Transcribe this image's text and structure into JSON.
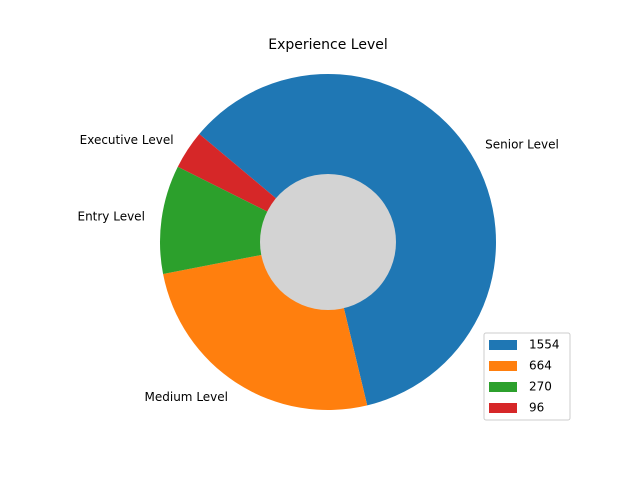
{
  "chart_data": {
    "type": "pie",
    "title": "Experience Level",
    "categories": [
      "Senior Level",
      "Medium Level",
      "Entry Level",
      "Executive Level"
    ],
    "values": [
      1554,
      664,
      270,
      96
    ],
    "colors": [
      "#1f77b4",
      "#ff7f0e",
      "#2ca02c",
      "#d62728"
    ],
    "center_hole_color": "#d3d3d3",
    "start_angle_deg": 140,
    "direction": "clockwise",
    "legend": {
      "position": "lower-right",
      "entries": [
        "1554",
        "664",
        "270",
        "96"
      ]
    }
  }
}
